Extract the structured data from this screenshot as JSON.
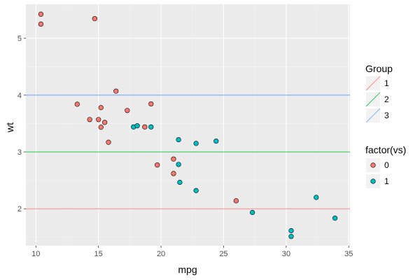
{
  "chart_data": {
    "type": "scatter",
    "title": "",
    "xlabel": "mpg",
    "ylabel": "wt",
    "xlim": [
      9.2,
      35.1
    ],
    "ylim": [
      1.35,
      5.6
    ],
    "xticks": [
      10,
      15,
      20,
      25,
      30,
      35
    ],
    "yticks": [
      2,
      3,
      4,
      5
    ],
    "x_tick_labels": [
      "10",
      "15",
      "20",
      "25",
      "30",
      "35"
    ],
    "y_tick_labels": [
      "2",
      "3",
      "4",
      "5"
    ],
    "grid": true,
    "background": "#ebebeb",
    "series": [
      {
        "name": "0",
        "color": "#f8766d",
        "points": [
          {
            "x": 10.4,
            "y": 5.424
          },
          {
            "x": 10.4,
            "y": 5.25
          },
          {
            "x": 14.7,
            "y": 5.345
          },
          {
            "x": 13.3,
            "y": 3.84
          },
          {
            "x": 14.3,
            "y": 3.57
          },
          {
            "x": 15.0,
            "y": 3.57
          },
          {
            "x": 15.2,
            "y": 3.78
          },
          {
            "x": 15.2,
            "y": 3.435
          },
          {
            "x": 15.5,
            "y": 3.52
          },
          {
            "x": 15.8,
            "y": 3.17
          },
          {
            "x": 16.4,
            "y": 4.07
          },
          {
            "x": 17.3,
            "y": 3.73
          },
          {
            "x": 18.7,
            "y": 3.44
          },
          {
            "x": 19.2,
            "y": 3.845
          },
          {
            "x": 19.7,
            "y": 2.77
          },
          {
            "x": 21.0,
            "y": 2.62
          },
          {
            "x": 21.0,
            "y": 2.875
          },
          {
            "x": 26.0,
            "y": 2.14
          }
        ]
      },
      {
        "name": "1",
        "color": "#00bfc4",
        "points": [
          {
            "x": 17.8,
            "y": 3.44
          },
          {
            "x": 18.1,
            "y": 3.46
          },
          {
            "x": 19.2,
            "y": 3.44
          },
          {
            "x": 21.4,
            "y": 3.215
          },
          {
            "x": 21.4,
            "y": 2.78
          },
          {
            "x": 21.5,
            "y": 2.465
          },
          {
            "x": 22.8,
            "y": 3.15
          },
          {
            "x": 22.8,
            "y": 2.32
          },
          {
            "x": 24.4,
            "y": 3.19
          },
          {
            "x": 27.3,
            "y": 1.935
          },
          {
            "x": 30.4,
            "y": 1.615
          },
          {
            "x": 30.4,
            "y": 1.513
          },
          {
            "x": 32.4,
            "y": 2.2
          },
          {
            "x": 33.9,
            "y": 1.835
          }
        ]
      }
    ],
    "hlines": [
      {
        "group": "1",
        "y": 2,
        "color": "#f8766d"
      },
      {
        "group": "2",
        "y": 3,
        "color": "#00ba38"
      },
      {
        "group": "3",
        "y": 4,
        "color": "#619cff"
      }
    ],
    "legends": [
      {
        "title": "Group",
        "type": "line",
        "entries": [
          {
            "label": "1",
            "color": "#f8766d"
          },
          {
            "label": "2",
            "color": "#00ba38"
          },
          {
            "label": "3",
            "color": "#619cff"
          }
        ]
      },
      {
        "title": "factor(vs)",
        "type": "point",
        "entries": [
          {
            "label": "0",
            "color": "#f8766d"
          },
          {
            "label": "1",
            "color": "#00bfc4"
          }
        ]
      }
    ],
    "legend_position": "right"
  }
}
